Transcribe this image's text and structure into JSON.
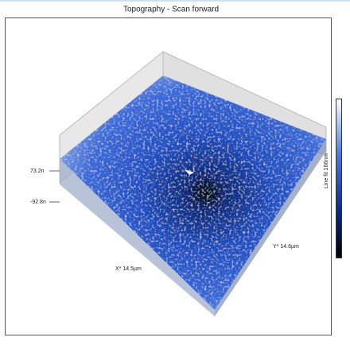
{
  "window": {
    "title": "Topography - Scan forward"
  },
  "plot": {
    "z_labels": [
      "73.2n",
      "-92.8n"
    ],
    "x_label": "X* 14.5µm",
    "y_label": "Y* 14.6µm"
  },
  "colorbar": {
    "label": "Line fit 166nm"
  }
}
